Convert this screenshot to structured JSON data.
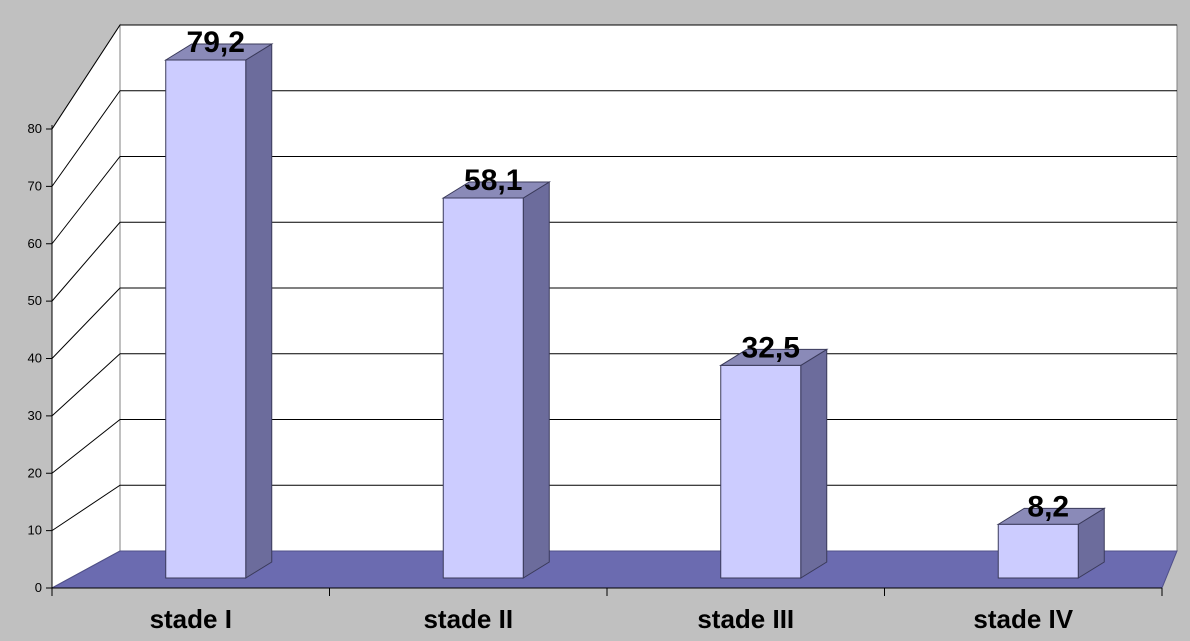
{
  "chart_data": {
    "type": "bar",
    "style": "3d-column",
    "categories": [
      "stade I",
      "stade II",
      "stade III",
      "stade IV"
    ],
    "values": [
      79.2,
      58.1,
      32.5,
      8.2
    ],
    "data_labels": [
      "79,2",
      "58,1",
      "32,5",
      "8,2"
    ],
    "y_ticks": [
      "0",
      "10",
      "20",
      "30",
      "40",
      "50",
      "60",
      "70",
      "80"
    ],
    "ylim": [
      0,
      80
    ],
    "grid": true,
    "legend": false,
    "title": "",
    "xlabel": "",
    "ylabel": "",
    "colors": {
      "background": "#c0c0c0",
      "plot_wall": "#ffffff",
      "floor": "#6b6bb0",
      "bar_front": "#ccccff",
      "bar_side": "#6c6c9c",
      "bar_top": "#8a8ab8",
      "gridline": "#000000"
    }
  }
}
